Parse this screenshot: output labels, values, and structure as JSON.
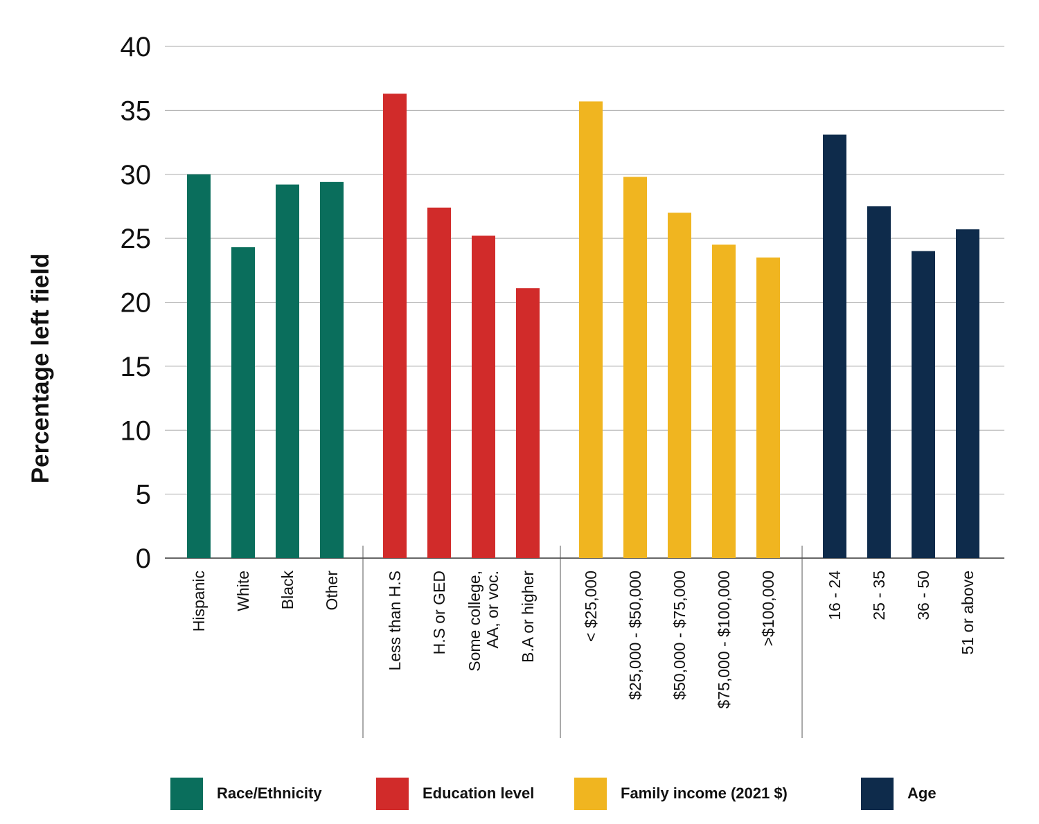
{
  "chart_data": {
    "type": "bar",
    "title": "",
    "xlabel": "",
    "ylabel": "Percentage left field",
    "ylim": [
      0,
      40
    ],
    "yticks": [
      0,
      5,
      10,
      15,
      20,
      25,
      30,
      35,
      40
    ],
    "grid": true,
    "legend_position": "bottom",
    "groups": [
      {
        "name": "Race/Ethnicity",
        "color": "#0a6e5c",
        "categories": [
          [
            "Hispanic"
          ],
          [
            "White"
          ],
          [
            "Black"
          ],
          [
            "Other"
          ]
        ],
        "values": [
          30.0,
          24.3,
          29.2,
          29.4
        ]
      },
      {
        "name": "Education level",
        "color": "#d12b2a",
        "categories": [
          [
            "Less than H.S"
          ],
          [
            "H.S or GED"
          ],
          [
            "Some  college,",
            "AA, or voc."
          ],
          [
            "B.A or higher"
          ]
        ],
        "values": [
          36.3,
          27.4,
          25.2,
          21.1
        ]
      },
      {
        "name": "Family income (2021 $)",
        "color": "#f0b520",
        "categories": [
          [
            "< $25,000"
          ],
          [
            "$25,000 - $50,000"
          ],
          [
            "$50,000 - $75,000"
          ],
          [
            "$75,000 - $100,000"
          ],
          [
            ">$100,000"
          ]
        ],
        "values": [
          35.7,
          29.8,
          27.0,
          24.5,
          23.5
        ]
      },
      {
        "name": "Age",
        "color": "#0e2b4b",
        "categories": [
          [
            "16 - 24"
          ],
          [
            "25 - 35"
          ],
          [
            "36 - 50"
          ],
          [
            "51 or above"
          ]
        ],
        "values": [
          33.1,
          27.5,
          24.0,
          25.7
        ]
      }
    ]
  }
}
